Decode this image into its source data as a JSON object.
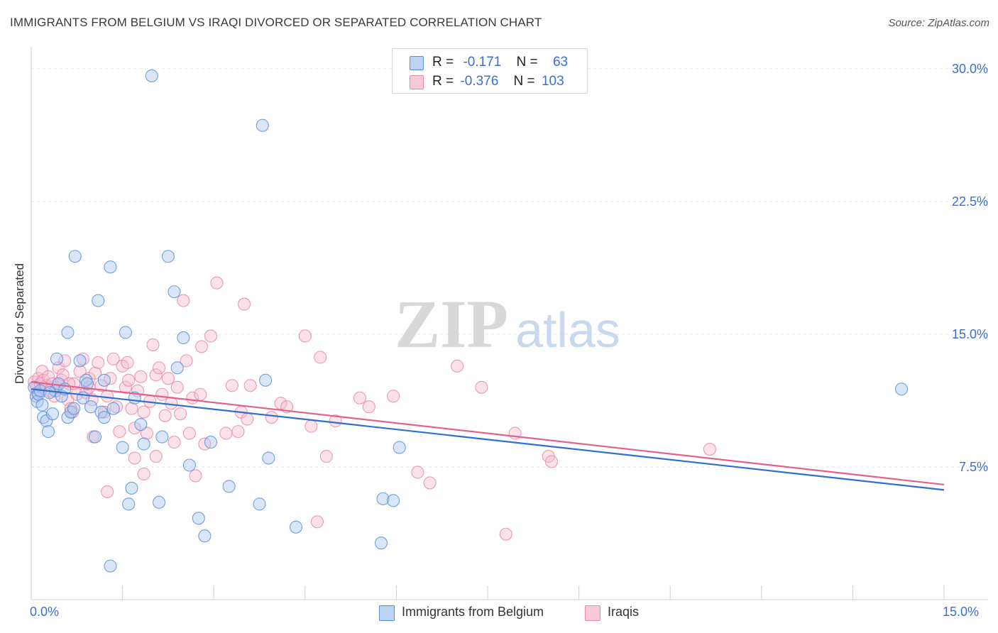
{
  "header": {
    "title": "IMMIGRANTS FROM BELGIUM VS IRAQI DIVORCED OR SEPARATED CORRELATION CHART",
    "source": "Source: ZipAtlas.com"
  },
  "watermark": {
    "zip": "ZIP",
    "atlas": "atlas"
  },
  "stats_legend": {
    "rows": [
      {
        "r_label": "R =",
        "r_value": "-0.171",
        "n_label": "N =",
        "n_value": "63"
      },
      {
        "r_label": "R =",
        "r_value": "-0.376",
        "n_label": "N =",
        "n_value": "103"
      }
    ]
  },
  "colors": {
    "belgium_fill": "#a9c8f0",
    "belgium_stroke": "#5a8fd8",
    "belgium_line": "#2f6fd0",
    "iraqi_fill": "#f6bdd0",
    "iraqi_stroke": "#e88aa8",
    "iraqi_line": "#e0628d",
    "tick_text": "#3a6fd1",
    "grid": "#e3e3e3"
  },
  "chart_data": {
    "type": "scatter",
    "title": "IMMIGRANTS FROM BELGIUM VS IRAQI DIVORCED OR SEPARATED CORRELATION CHART",
    "xlabel": "",
    "ylabel": "Divorced or Separated",
    "xlim": [
      0,
      15
    ],
    "ylim": [
      0,
      31
    ],
    "x_tick_labels": [
      "0.0%",
      "15.0%"
    ],
    "y_ticks": [
      7.5,
      15.0,
      22.5,
      30.0
    ],
    "y_tick_labels": [
      "7.5%",
      "15.0%",
      "22.5%",
      "30.0%"
    ],
    "grid": true,
    "legend_position": "bottom-center",
    "series": [
      {
        "name": "Immigrants from Belgium",
        "trend": {
          "x": [
            0,
            15
          ],
          "y": [
            11.9,
            6.2
          ]
        },
        "points": [
          [
            0.05,
            12.0
          ],
          [
            0.08,
            11.5
          ],
          [
            0.1,
            11.2
          ],
          [
            0.12,
            11.6
          ],
          [
            0.15,
            11.8
          ],
          [
            0.18,
            11.0
          ],
          [
            0.2,
            10.3
          ],
          [
            0.25,
            10.1
          ],
          [
            0.28,
            9.5
          ],
          [
            0.35,
            10.5
          ],
          [
            0.4,
            11.8
          ],
          [
            0.42,
            13.6
          ],
          [
            0.45,
            12.2
          ],
          [
            0.5,
            11.5
          ],
          [
            0.55,
            11.9
          ],
          [
            0.6,
            10.3
          ],
          [
            0.6,
            15.1
          ],
          [
            0.65,
            10.6
          ],
          [
            0.7,
            10.8
          ],
          [
            0.72,
            19.4
          ],
          [
            0.8,
            13.5
          ],
          [
            0.85,
            11.4
          ],
          [
            0.9,
            12.4
          ],
          [
            0.92,
            12.2
          ],
          [
            0.98,
            10.9
          ],
          [
            1.05,
            9.2
          ],
          [
            1.1,
            16.9
          ],
          [
            1.15,
            10.6
          ],
          [
            1.2,
            10.3
          ],
          [
            1.2,
            12.4
          ],
          [
            1.3,
            18.8
          ],
          [
            1.3,
            1.9
          ],
          [
            1.35,
            10.8
          ],
          [
            1.5,
            8.6
          ],
          [
            1.55,
            15.1
          ],
          [
            1.6,
            5.4
          ],
          [
            1.65,
            6.3
          ],
          [
            1.7,
            11.4
          ],
          [
            1.8,
            9.9
          ],
          [
            1.85,
            8.8
          ],
          [
            1.98,
            29.6
          ],
          [
            2.1,
            5.5
          ],
          [
            2.15,
            9.2
          ],
          [
            2.25,
            19.4
          ],
          [
            2.35,
            17.4
          ],
          [
            2.4,
            13.1
          ],
          [
            2.5,
            14.8
          ],
          [
            2.6,
            7.6
          ],
          [
            2.75,
            4.6
          ],
          [
            2.85,
            3.6
          ],
          [
            2.95,
            8.9
          ],
          [
            3.25,
            6.4
          ],
          [
            3.75,
            5.4
          ],
          [
            3.8,
            26.8
          ],
          [
            3.85,
            12.4
          ],
          [
            3.9,
            8.0
          ],
          [
            4.35,
            4.1
          ],
          [
            5.75,
            3.2
          ],
          [
            5.78,
            5.7
          ],
          [
            5.95,
            5.6
          ],
          [
            6.05,
            8.6
          ],
          [
            14.3,
            11.9
          ],
          [
            0.3,
            11.7
          ]
        ]
      },
      {
        "name": "Iraqis",
        "trend": {
          "x": [
            0,
            15
          ],
          "y": [
            12.3,
            6.5
          ]
        },
        "points": [
          [
            0.05,
            12.3
          ],
          [
            0.08,
            12.0
          ],
          [
            0.1,
            11.7
          ],
          [
            0.12,
            12.5
          ],
          [
            0.15,
            12.2
          ],
          [
            0.18,
            12.9
          ],
          [
            0.2,
            12.4
          ],
          [
            0.22,
            11.9
          ],
          [
            0.25,
            12.1
          ],
          [
            0.28,
            12.6
          ],
          [
            0.3,
            11.8
          ],
          [
            0.35,
            12.2
          ],
          [
            0.38,
            11.5
          ],
          [
            0.42,
            12.0
          ],
          [
            0.45,
            13.1
          ],
          [
            0.5,
            12.4
          ],
          [
            0.52,
            12.7
          ],
          [
            0.55,
            13.5
          ],
          [
            0.6,
            11.3
          ],
          [
            0.65,
            10.8
          ],
          [
            0.7,
            12.2
          ],
          [
            0.75,
            11.6
          ],
          [
            0.8,
            12.9
          ],
          [
            0.85,
            13.6
          ],
          [
            0.9,
            11.7
          ],
          [
            0.95,
            12.5
          ],
          [
            1.0,
            11.3
          ],
          [
            1.05,
            12.8
          ],
          [
            1.1,
            13.4
          ],
          [
            1.15,
            12.1
          ],
          [
            1.2,
            10.6
          ],
          [
            1.25,
            11.5
          ],
          [
            1.3,
            12.5
          ],
          [
            1.35,
            13.6
          ],
          [
            1.4,
            10.9
          ],
          [
            1.45,
            9.5
          ],
          [
            1.5,
            13.2
          ],
          [
            1.55,
            12.0
          ],
          [
            1.6,
            12.4
          ],
          [
            1.65,
            10.8
          ],
          [
            1.7,
            9.7
          ],
          [
            1.75,
            11.8
          ],
          [
            1.8,
            12.6
          ],
          [
            1.85,
            10.6
          ],
          [
            1.9,
            9.4
          ],
          [
            1.95,
            11.2
          ],
          [
            2.0,
            14.4
          ],
          [
            2.05,
            12.7
          ],
          [
            2.1,
            13.1
          ],
          [
            2.15,
            11.6
          ],
          [
            2.2,
            10.4
          ],
          [
            2.25,
            12.5
          ],
          [
            2.3,
            11.1
          ],
          [
            2.35,
            8.9
          ],
          [
            2.4,
            12.0
          ],
          [
            2.45,
            10.5
          ],
          [
            2.5,
            16.9
          ],
          [
            2.55,
            13.5
          ],
          [
            2.6,
            9.4
          ],
          [
            2.65,
            11.4
          ],
          [
            2.7,
            7.0
          ],
          [
            2.8,
            14.3
          ],
          [
            2.85,
            8.8
          ],
          [
            2.95,
            14.9
          ],
          [
            3.05,
            17.9
          ],
          [
            3.2,
            9.4
          ],
          [
            3.3,
            12.1
          ],
          [
            3.4,
            9.5
          ],
          [
            3.45,
            10.6
          ],
          [
            3.5,
            16.7
          ],
          [
            3.55,
            10.2
          ],
          [
            3.6,
            12.1
          ],
          [
            3.95,
            10.3
          ],
          [
            4.1,
            11.1
          ],
          [
            4.2,
            10.9
          ],
          [
            4.5,
            14.9
          ],
          [
            4.6,
            9.8
          ],
          [
            4.7,
            4.4
          ],
          [
            4.75,
            13.7
          ],
          [
            4.85,
            8.1
          ],
          [
            5.0,
            10.1
          ],
          [
            5.4,
            11.4
          ],
          [
            5.55,
            10.9
          ],
          [
            5.95,
            11.5
          ],
          [
            6.35,
            7.2
          ],
          [
            6.55,
            6.6
          ],
          [
            7.0,
            13.2
          ],
          [
            7.4,
            12.0
          ],
          [
            7.8,
            3.7
          ],
          [
            7.95,
            9.4
          ],
          [
            8.5,
            8.1
          ],
          [
            8.55,
            7.8
          ],
          [
            11.15,
            8.5
          ],
          [
            1.25,
            6.1
          ],
          [
            1.7,
            8.0
          ],
          [
            1.85,
            7.1
          ],
          [
            0.95,
            12.0
          ],
          [
            0.68,
            10.6
          ],
          [
            1.02,
            9.2
          ],
          [
            1.58,
            13.4
          ],
          [
            2.05,
            8.1
          ],
          [
            0.62,
            12.2
          ],
          [
            2.78,
            11.6
          ]
        ]
      }
    ]
  },
  "legend": {
    "items": [
      {
        "label": "Immigrants from Belgium"
      },
      {
        "label": "Iraqis"
      }
    ]
  }
}
